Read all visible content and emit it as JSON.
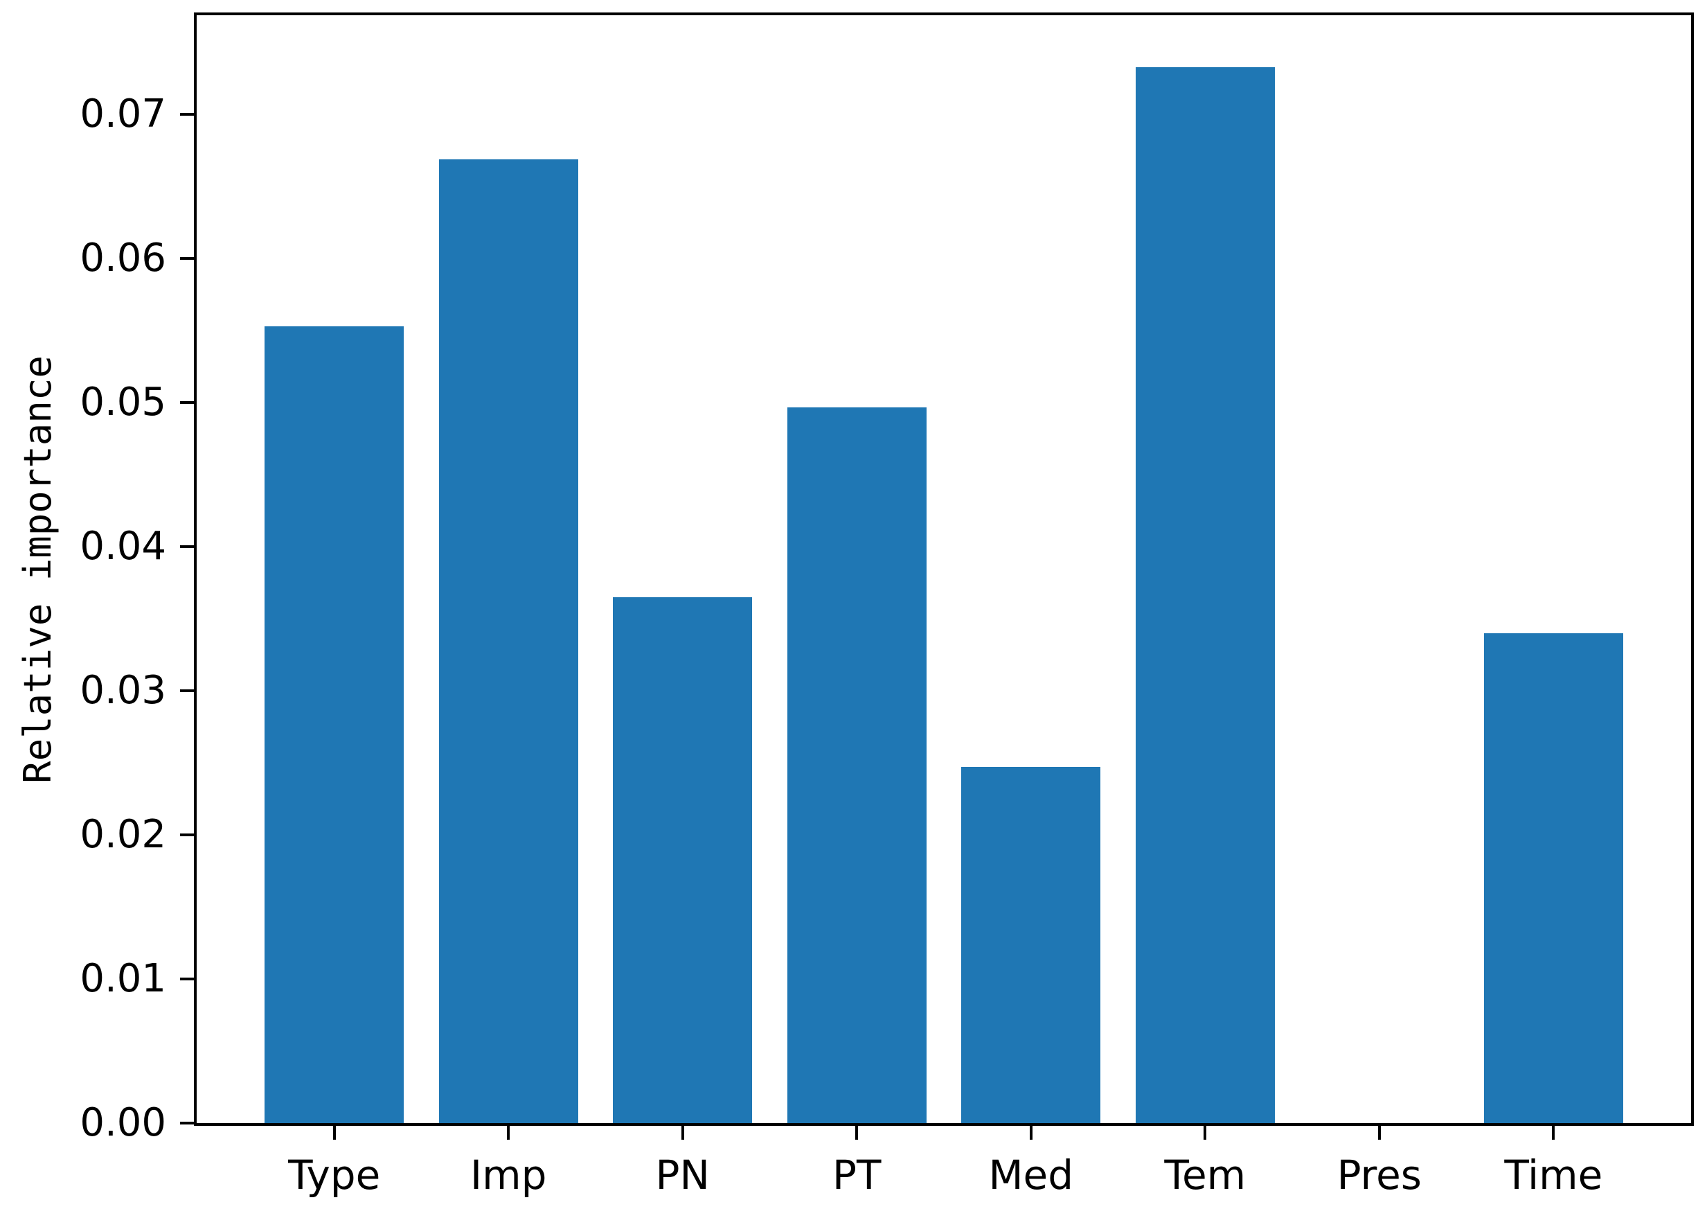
{
  "chart_data": {
    "type": "bar",
    "title": "",
    "xlabel": "",
    "ylabel": "Relative importance",
    "categories": [
      "Type",
      "Imp",
      "PN",
      "PT",
      "Med",
      "Tem",
      "Pres",
      "Time"
    ],
    "values": [
      0.0553,
      0.0669,
      0.0365,
      0.0497,
      0.0247,
      0.0733,
      0.0,
      0.034
    ],
    "bar_color": "#1f77b4",
    "axis_color": "#000000",
    "background_color": "#ffffff",
    "ylim": [
      0,
      0.0769
    ],
    "yticks": {
      "values": [
        0,
        0.01,
        0.02,
        0.03,
        0.04,
        0.05,
        0.06,
        0.07
      ],
      "labels": [
        "0.00",
        "0.01",
        "0.02",
        "0.03",
        "0.04",
        "0.05",
        "0.06",
        "0.07"
      ]
    },
    "bar_width_fraction": 0.8,
    "x_margin": 0.39,
    "grid": false,
    "legend": "none"
  }
}
